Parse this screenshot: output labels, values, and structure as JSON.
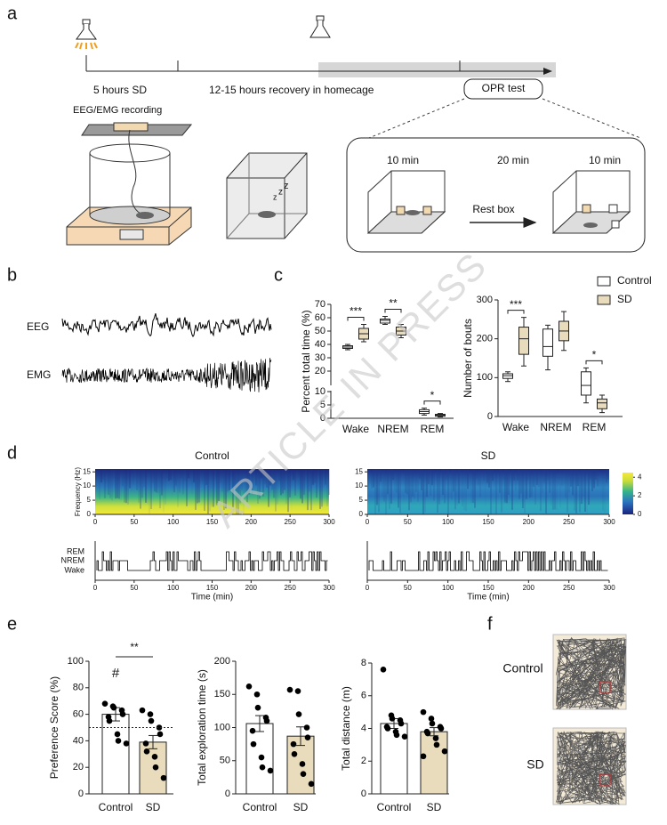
{
  "panel_letters": [
    "a",
    "b",
    "c",
    "d",
    "e",
    "f"
  ],
  "watermark": "ARTICLE IN PRESS",
  "panel_a": {
    "sd_label": "5 hours SD",
    "recovery_label": "12-15 hours recovery in homecage",
    "opr_label": "OPR test",
    "recording_label": "EEG/EMG recording",
    "phase1": "10 min",
    "phase2": "20 min",
    "phase3": "10 min",
    "rest_label": "Rest box"
  },
  "panel_b": {
    "labels": [
      "EEG",
      "EMG"
    ]
  },
  "panel_f": {
    "labels": [
      "Control",
      "SD"
    ]
  },
  "chart_data": [
    {
      "type": "box",
      "ylabel": "Percent total time (%)",
      "categories": [
        "Wake",
        "NREM",
        "REM"
      ],
      "ylim": [
        0,
        70
      ],
      "yticks": [
        0,
        5,
        10,
        20,
        30,
        40,
        50,
        60,
        70
      ],
      "ybreak": 10,
      "series": [
        {
          "color": "#ffffff",
          "min": [
            36,
            55,
            1.2
          ],
          "q1": [
            37,
            56,
            1.8
          ],
          "median": [
            38,
            58,
            2.5
          ],
          "q3": [
            39,
            59,
            3.2
          ],
          "max": [
            40,
            61,
            3.8
          ]
        },
        {
          "color": "#e8dcbc",
          "min": [
            42,
            45,
            0.5
          ],
          "q1": [
            44,
            47,
            0.8
          ],
          "median": [
            48,
            50,
            1.2
          ],
          "q3": [
            52,
            53,
            1.5
          ],
          "max": [
            55,
            55,
            1.8
          ]
        }
      ],
      "annotations": [
        "***",
        "**",
        "*"
      ]
    },
    {
      "type": "box",
      "ylabel": "Number of bouts",
      "categories": [
        "Wake",
        "NREM",
        "REM"
      ],
      "ylim": [
        0,
        300
      ],
      "yticks": [
        0,
        100,
        200,
        300
      ],
      "legend": "top-right",
      "series": [
        {
          "name": "Control",
          "color": "#ffffff",
          "min": [
            90,
            120,
            35
          ],
          "q1": [
            98,
            155,
            55
          ],
          "median": [
            105,
            180,
            80
          ],
          "q3": [
            110,
            225,
            115
          ],
          "max": [
            115,
            235,
            125
          ]
        },
        {
          "name": "SD",
          "color": "#e8dcbc",
          "min": [
            130,
            170,
            10
          ],
          "q1": [
            160,
            195,
            20
          ],
          "median": [
            200,
            220,
            35
          ],
          "q3": [
            230,
            245,
            45
          ],
          "max": [
            255,
            270,
            55
          ]
        }
      ],
      "annotations": [
        "***",
        null,
        "*"
      ]
    },
    {
      "type": "heatmap",
      "title": "Control",
      "ylabel": "Frequency (Hz)",
      "palette": "control",
      "xlim": [
        0,
        300
      ],
      "xticks": [
        0,
        50,
        100,
        150,
        200,
        250,
        300
      ],
      "ylim": [
        0,
        16
      ],
      "yticks": [
        0,
        5,
        10,
        15
      ]
    },
    {
      "type": "heatmap",
      "title": "SD",
      "palette": "sd",
      "xlim": [
        0,
        300
      ],
      "xticks": [
        0,
        50,
        100,
        150,
        200,
        250,
        300
      ],
      "ylim": [
        0,
        16
      ],
      "yticks": [
        0,
        5,
        10,
        15
      ],
      "colorbar_lim": [
        0,
        4.5
      ],
      "colorbar_ticks": [
        0,
        2,
        4
      ]
    },
    {
      "type": "hypnogram",
      "categories": [
        "REM",
        "NREM",
        "Wake"
      ],
      "xlabel": "Time (min)",
      "xlim": [
        0,
        300
      ],
      "xticks": [
        0,
        50,
        100,
        150,
        200,
        250,
        300
      ],
      "pattern": "control"
    },
    {
      "type": "hypnogram",
      "xlabel": "Time (min)",
      "xlim": [
        0,
        300
      ],
      "xticks": [
        0,
        50,
        100,
        150,
        200,
        250,
        300
      ],
      "pattern": "sd"
    },
    {
      "type": "bar",
      "ylabel": "Preference Score (%)",
      "categories": [
        "Control",
        "SD"
      ],
      "values": [
        60,
        39
      ],
      "errors": [
        5,
        5
      ],
      "colors": [
        "#ffffff",
        "#e8dcbc"
      ],
      "points": [
        [
          68,
          66,
          65,
          63,
          60,
          58,
          55,
          45,
          40,
          38
        ],
        [
          63,
          60,
          55,
          50,
          45,
          38,
          32,
          28,
          20,
          12
        ]
      ],
      "ylim": [
        0,
        100
      ],
      "yticks": [
        0,
        20,
        40,
        60,
        80,
        100
      ],
      "reference_line": 50,
      "marker": "#",
      "significance": "**"
    },
    {
      "type": "bar",
      "ylabel": "Total exploration time (s)",
      "categories": [
        "Control",
        "SD"
      ],
      "values": [
        106,
        87
      ],
      "errors": [
        12,
        14
      ],
      "colors": [
        "#ffffff",
        "#e8dcbc"
      ],
      "points": [
        [
          162,
          150,
          130,
          115,
          110,
          95,
          75,
          55,
          40,
          35
        ],
        [
          157,
          155,
          120,
          100,
          85,
          75,
          60,
          45,
          30,
          15
        ]
      ],
      "ylim": [
        0,
        200
      ],
      "yticks": [
        0,
        50,
        100,
        150,
        200
      ]
    },
    {
      "type": "bar",
      "ylabel": "Total distance (m)",
      "categories": [
        "Control",
        "SD"
      ],
      "values": [
        4.3,
        3.8
      ],
      "errors": [
        0.3,
        0.25
      ],
      "colors": [
        "#ffffff",
        "#e8dcbc"
      ],
      "points": [
        [
          7.6,
          4.8,
          4.6,
          4.5,
          4.3,
          4.1,
          4.0,
          3.8,
          3.6,
          3.5
        ],
        [
          5.0,
          4.6,
          4.3,
          4.1,
          4.0,
          3.8,
          3.7,
          3.4,
          3.0,
          2.6,
          2.3
        ]
      ],
      "ylim": [
        0,
        8
      ],
      "yticks": [
        0,
        2,
        4,
        6,
        8
      ]
    }
  ]
}
